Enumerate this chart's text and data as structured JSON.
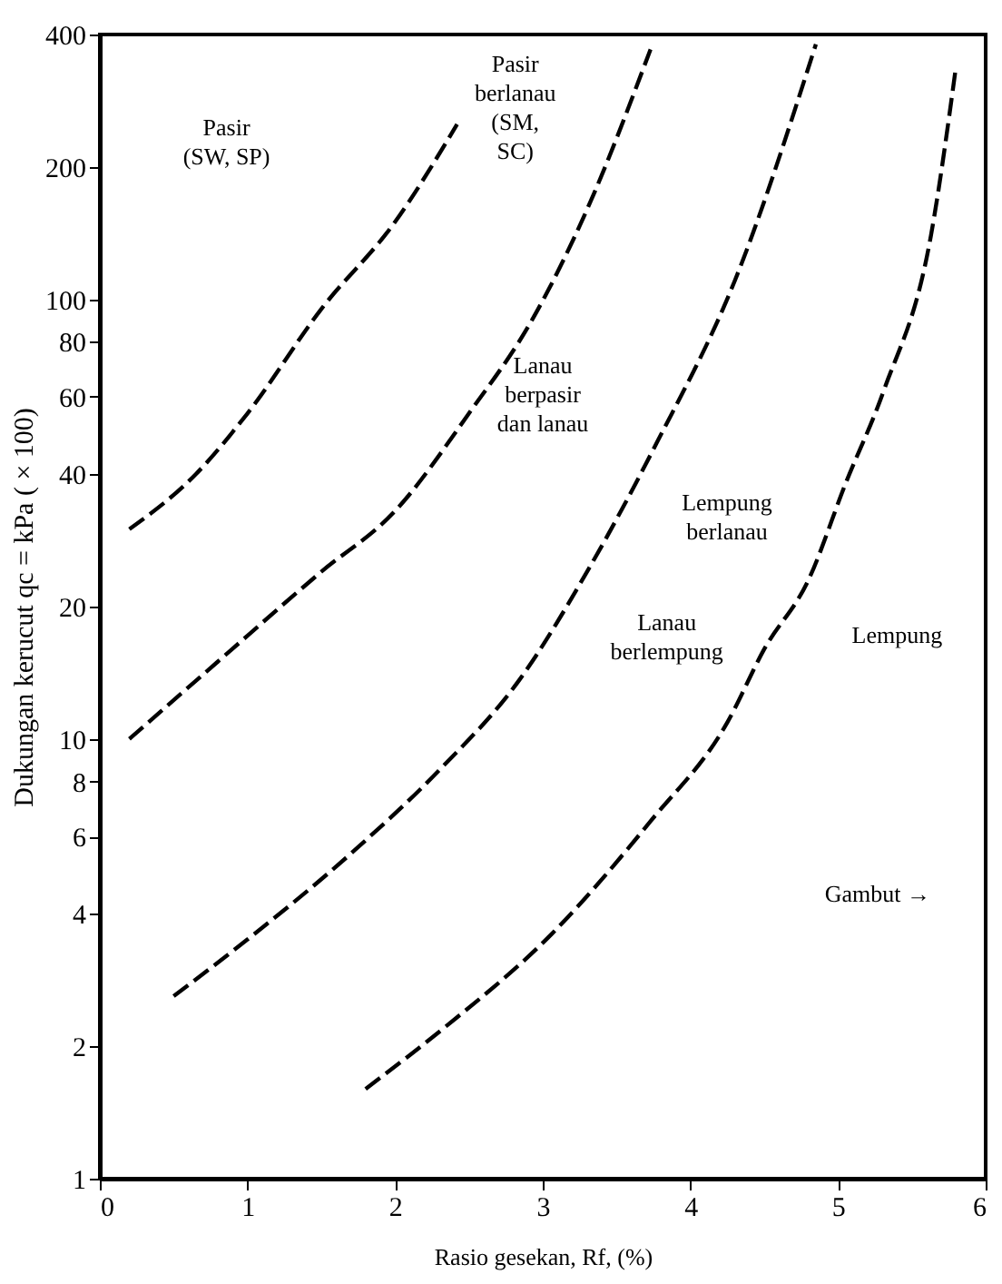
{
  "chart_data": {
    "type": "line",
    "xlabel": "Rasio gesekan, Rf, (%)",
    "ylabel": "Dukungan kerucut qc = kPa ( × 100)",
    "xlim": [
      0,
      6
    ],
    "xticks": [
      0,
      1,
      2,
      3,
      4,
      5,
      6
    ],
    "ylim": [
      1,
      400
    ],
    "yticks": [
      1,
      2,
      4,
      6,
      8,
      10,
      20,
      40,
      60,
      80,
      100,
      200,
      400
    ],
    "log": true,
    "grid": false,
    "legend": false,
    "line_style": "dashed",
    "marker": "none",
    "series": [
      {
        "color": "#000000",
        "x": [
          0.2,
          0.65,
          1.0,
          1.5,
          2.0,
          2.42
        ],
        "values": [
          30,
          40,
          55,
          95,
          150,
          250
        ]
      },
      {
        "color": "#000000",
        "x": [
          0.2,
          0.8,
          1.5,
          2.0,
          2.5,
          2.93,
          3.3,
          3.73
        ],
        "values": [
          10,
          15,
          24,
          33,
          55,
          90,
          160,
          370
        ]
      },
      {
        "color": "#000000",
        "x": [
          0.5,
          1.0,
          1.73,
          2.3,
          2.84,
          3.3,
          3.77,
          4.3,
          4.85
        ],
        "values": [
          2.6,
          3.5,
          5.6,
          8.5,
          13.6,
          24,
          47,
          110,
          380
        ]
      },
      {
        "color": "#000000",
        "x": [
          1.8,
          2.33,
          3.06,
          3.73,
          4.25,
          4.5,
          4.8,
          5.05,
          5.31,
          5.63,
          5.8
        ],
        "values": [
          1.6,
          2.2,
          3.6,
          6.5,
          10.9,
          16,
          23,
          38,
          62,
          140,
          340
        ]
      }
    ],
    "annotations": [
      "Pasir\n(SW, SP)",
      "Pasir\nberlanau\n(SM,\nSC)",
      "Lanau\nberpasir\ndan lanau",
      "Lempung\nberlanau",
      "Lanau\nberlempung",
      "Lempung",
      "Gambut →"
    ]
  }
}
